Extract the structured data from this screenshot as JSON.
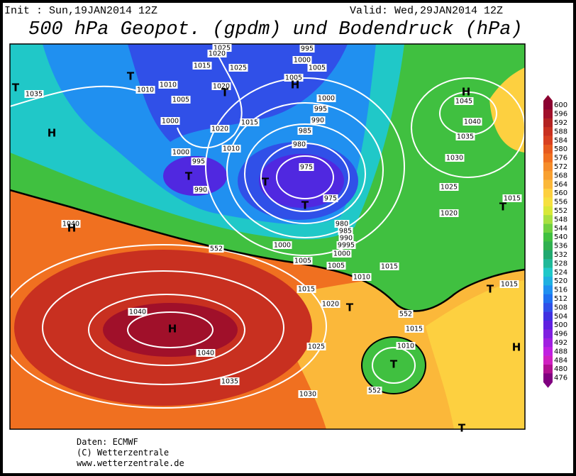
{
  "header": {
    "init": "Init : Sun,19JAN2014 12Z",
    "valid": "Valid: Wed,29JAN2014 12Z",
    "title": "500 hPa Geopot. (gpdm) und Bodendruck (hPa)"
  },
  "colorbar": {
    "values": [
      600,
      596,
      592,
      588,
      584,
      580,
      576,
      572,
      568,
      564,
      560,
      556,
      552,
      548,
      544,
      540,
      536,
      532,
      528,
      524,
      520,
      516,
      512,
      508,
      504,
      500,
      496,
      492,
      488,
      484,
      480,
      476
    ],
    "colors": [
      "#8b0030",
      "#a0102a",
      "#b22222",
      "#c83020",
      "#d84020",
      "#e65a1e",
      "#f07020",
      "#f58c2a",
      "#f8a030",
      "#fbb83a",
      "#fdd040",
      "#f6e040",
      "#d8e838",
      "#a8e040",
      "#70d040",
      "#40c040",
      "#30b050",
      "#20a870",
      "#20b898",
      "#20c8c8",
      "#20b0e0",
      "#2090f0",
      "#2070f0",
      "#3050e8",
      "#4030e0",
      "#6020e0",
      "#8020e0",
      "#a020e0",
      "#c020e0",
      "#d020c0",
      "#b01090",
      "#800080"
    ]
  },
  "map": {
    "labels": [
      "1035",
      "1010",
      "1010",
      "1005",
      "1015",
      "1025",
      "1020",
      "1020",
      "1015",
      "1010",
      "1000",
      "1000",
      "995",
      "990",
      "1025",
      "1020",
      "995",
      "1000",
      "1005",
      "1000",
      "995",
      "990",
      "985",
      "980",
      "975",
      "975",
      "980",
      "985",
      "990",
      "9995",
      "1000",
      "1005",
      "1010",
      "1015",
      "1015",
      "1020",
      "1025",
      "1030",
      "1035",
      "1040",
      "1040",
      "1040",
      "1015",
      "1010",
      "1005",
      "1000",
      "1005",
      "1045",
      "1040",
      "1035",
      "1030",
      "1025",
      "1020",
      "1015",
      "1015",
      "552",
      "552",
      "552"
    ],
    "markers": [
      "T",
      "H",
      "T",
      "T",
      "H",
      "T",
      "T",
      "T",
      "H",
      "H",
      "T",
      "T",
      "H",
      "T",
      "T",
      "H",
      "T"
    ]
  },
  "footer": {
    "source": "Daten: ECMWF",
    "copyright": "(C) Wetterzentrale",
    "url": "www.wetterzentrale.de"
  }
}
